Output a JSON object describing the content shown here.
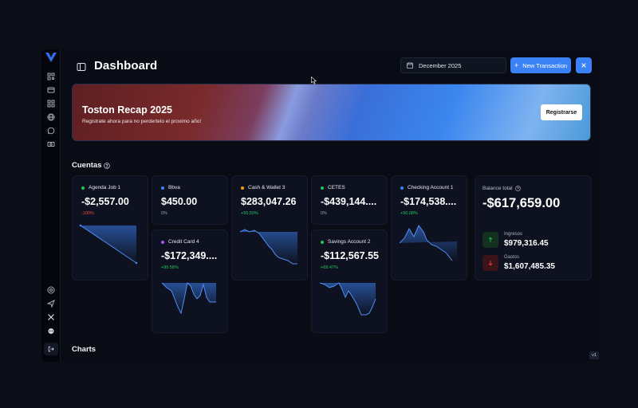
{
  "header": {
    "title": "Dashboard",
    "date_value": "December 2025",
    "new_transaction_label": "New Transaction"
  },
  "banner": {
    "title": "Toston Recap 2025",
    "subtitle": "Registrate ahora para no perdertelo el proximo año!",
    "button_label": "Registrarse"
  },
  "accounts_section": {
    "title": "Cuentas"
  },
  "charts_section": {
    "title": "Charts"
  },
  "accounts": [
    {
      "name": "Agenda Job 1",
      "amount": "-$2,557.00",
      "change": "-100%",
      "dot_color": "#22c55e",
      "change_color": "#ef4444"
    },
    {
      "name": "Bbva",
      "amount": "$450.00",
      "change": "0%",
      "dot_color": "#3b82f6",
      "change_color": "#9ca3af"
    },
    {
      "name": "Cash & Wallet 3",
      "amount": "$283,047.26",
      "change": "+55.59%",
      "dot_color": "#f59e0b",
      "change_color": "#22c55e"
    },
    {
      "name": "CETES",
      "amount": "-$439,144....",
      "change": "0%",
      "dot_color": "#22c55e",
      "change_color": "#9ca3af"
    },
    {
      "name": "Checking Account 1",
      "amount": "-$174,538....",
      "change": "+50.08%",
      "dot_color": "#3b82f6",
      "change_color": "#22c55e"
    },
    {
      "name": "Credit Card 4",
      "amount": "-$172,349....",
      "change": "+95.58%",
      "dot_color": "#a855f7",
      "change_color": "#22c55e"
    },
    {
      "name": "Savings Account 2",
      "amount": "-$112,567.55",
      "change": "+68.47%",
      "dot_color": "#22c55e",
      "change_color": "#22c55e"
    }
  ],
  "balance": {
    "label": "Balance total",
    "total": "-$617,659.00",
    "income_label": "Ingresos",
    "income_value": "$979,316.45",
    "expense_label": "Gastos",
    "expense_value": "$1,607,485.35",
    "income_color": "#22c55e",
    "expense_color": "#ef4444"
  },
  "version_badge": "v1",
  "sidebar_icons": [
    "qr-icon",
    "card-icon",
    "grid-icon",
    "globe-icon",
    "whatsapp-icon",
    "cash-icon"
  ],
  "sidebar_bottom_icons": [
    "help-icon",
    "send-icon",
    "x-logo-icon",
    "reddit-icon",
    "logout-icon"
  ],
  "accent_color": "#3b82f6"
}
